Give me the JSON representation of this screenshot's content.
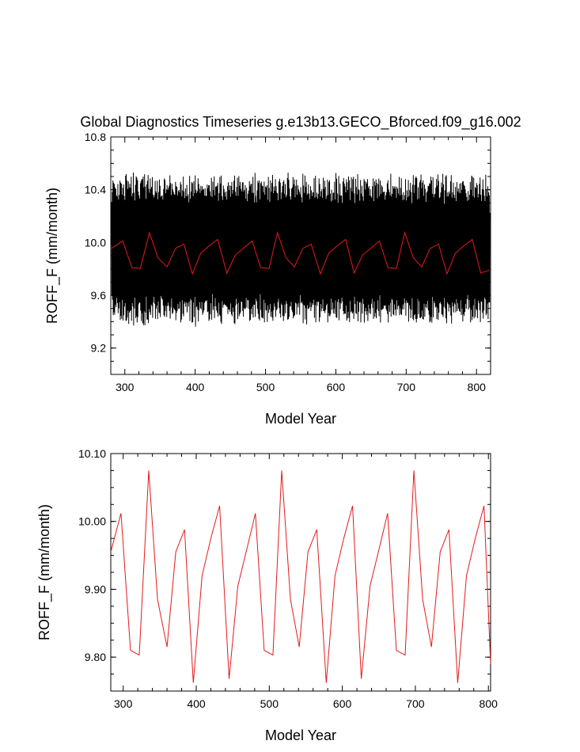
{
  "chart_data": [
    {
      "type": "line",
      "title": "Global Diagnostics Timeseries g.e13b13.GECO_Bforced.f09_g16.002",
      "xlabel": "Model Year",
      "ylabel": "ROFF_F (mm/month)",
      "xlim": [
        280,
        820
      ],
      "ylim": [
        9.0,
        10.8
      ],
      "xticks": [
        "300",
        "400",
        "500",
        "600",
        "700",
        "800"
      ],
      "yticks": [
        "9.2",
        "9.6",
        "10.0",
        "10.4",
        "10.8"
      ],
      "series": [
        {
          "color": "#000000",
          "style": "monthly",
          "description_seasonal_cycle": [
            9.95,
            10.45,
            10.35,
            10.1,
            9.85,
            9.6,
            9.45,
            9.5,
            9.7,
            9.95,
            10.2,
            10.3
          ],
          "x_start": 281,
          "x_end": 819
        },
        {
          "color": "#e31a1c",
          "x": [
            281,
            297,
            310,
            322,
            335,
            347,
            360,
            372,
            384,
            396,
            408,
            420,
            432,
            445,
            457,
            469,
            481,
            493,
            505,
            517,
            529,
            541,
            553,
            565,
            578,
            590,
            602,
            614,
            626,
            638,
            650,
            662,
            674,
            686,
            698,
            710,
            722,
            734,
            746,
            758,
            770,
            782,
            794,
            806,
            818
          ],
          "values": [
            9.955,
            10.012,
            9.81,
            9.803,
            10.075,
            9.885,
            9.815,
            9.955,
            9.988,
            9.762,
            9.92,
            9.975,
            10.023,
            9.768,
            9.905,
            9.958,
            10.012,
            9.81,
            9.803,
            10.075,
            9.885,
            9.815,
            9.955,
            9.988,
            9.762,
            9.92,
            9.975,
            10.023,
            9.768,
            9.905,
            9.958,
            10.012,
            9.81,
            9.803,
            10.075,
            9.885,
            9.815,
            9.955,
            9.988,
            9.762,
            9.92,
            9.975,
            10.023,
            9.768,
            9.79
          ]
        }
      ]
    },
    {
      "type": "line",
      "title": "",
      "xlabel": "Model Year",
      "ylabel": "ROFF_F (mm/month)",
      "xlim": [
        283,
        803
      ],
      "ylim": [
        9.75,
        10.1
      ],
      "xticks": [
        "300",
        "400",
        "500",
        "600",
        "700",
        "800"
      ],
      "yticks": [
        "9.80",
        "9.90",
        "10.00",
        "10.10"
      ],
      "series": [
        {
          "color": "#e31a1c",
          "x": [
            283,
            297,
            310,
            322,
            335,
            347,
            360,
            372,
            384,
            396,
            408,
            420,
            432,
            445,
            457,
            469,
            481,
            493,
            505,
            517,
            529,
            541,
            553,
            565,
            578,
            590,
            602,
            614,
            626,
            638,
            650,
            662,
            674,
            686,
            698,
            710,
            722,
            734,
            746,
            758,
            770,
            782,
            794,
            803
          ],
          "values": [
            9.955,
            10.012,
            9.81,
            9.803,
            10.075,
            9.885,
            9.815,
            9.955,
            9.988,
            9.762,
            9.92,
            9.975,
            10.023,
            9.768,
            9.905,
            9.958,
            10.012,
            9.81,
            9.803,
            10.075,
            9.885,
            9.815,
            9.955,
            9.988,
            9.762,
            9.92,
            9.975,
            10.023,
            9.768,
            9.905,
            9.958,
            10.012,
            9.81,
            9.803,
            10.075,
            9.885,
            9.815,
            9.955,
            9.988,
            9.762,
            9.92,
            9.975,
            10.023,
            9.79
          ]
        }
      ]
    }
  ]
}
